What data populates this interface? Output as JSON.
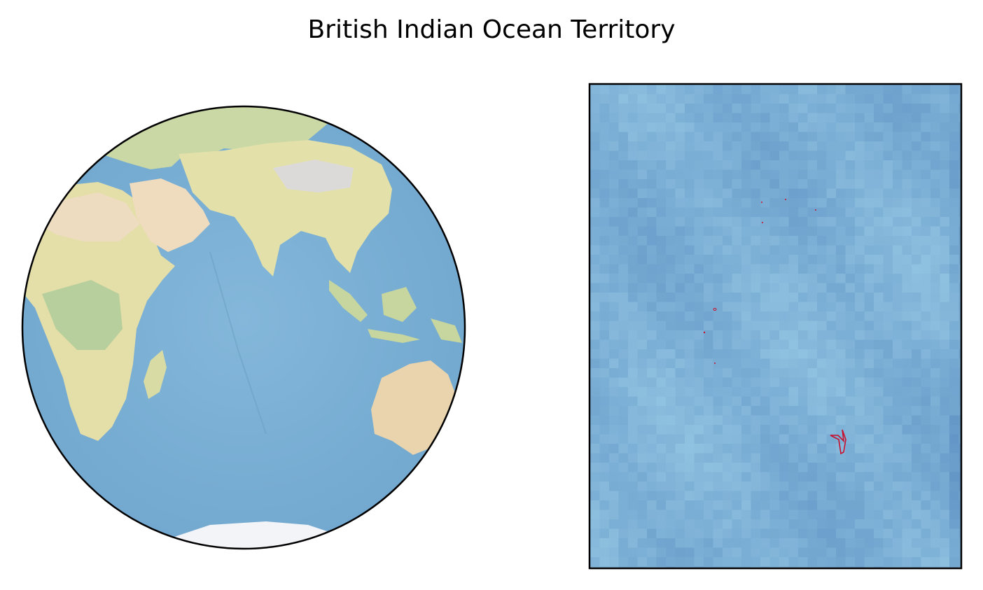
{
  "figure": {
    "title": "British Indian Ocean Territory"
  },
  "globe": {
    "projection": "orthographic",
    "view": "Indian Ocean hemisphere",
    "colors": {
      "ocean": "#7fb2d6",
      "land": "#e7e2ad",
      "desert": "#eed9bd",
      "vegetation": "#b6cf9a",
      "ice": "#f3f4f8",
      "outline": "#000000"
    }
  },
  "inset": {
    "colors": {
      "ocean_base": "#7eb1d6",
      "territory_outline": "#c8102e",
      "frame": "#000000"
    }
  }
}
